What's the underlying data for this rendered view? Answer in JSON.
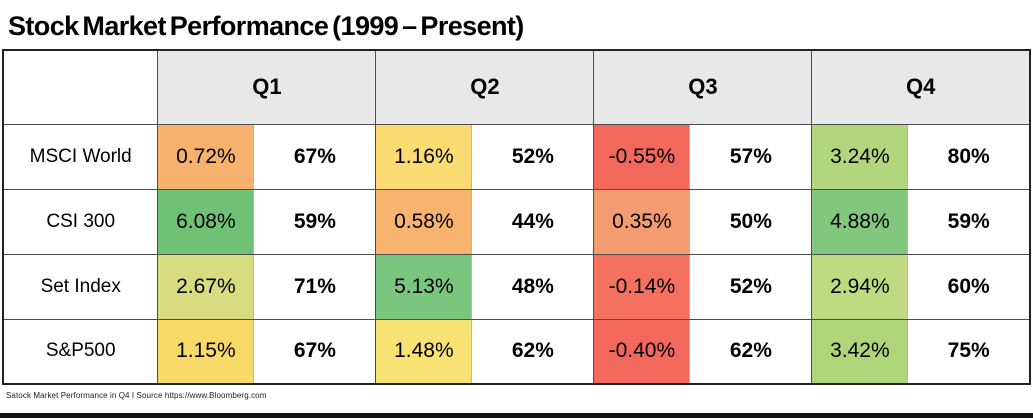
{
  "title": "Stock Market Performance (1999 – Present)",
  "footer": "Satock Market Performance in Q4 I Source https://www.Bloomberg.com",
  "table": {
    "corner_label": "",
    "quarters": [
      "Q1",
      "Q2",
      "Q3",
      "Q4"
    ],
    "rows": [
      {
        "label": "MSCI World",
        "cells": [
          {
            "value": "0.72%",
            "color": "#f6b26c",
            "pct": "67%"
          },
          {
            "value": "1.16%",
            "color": "#fbdc72",
            "pct": "52%"
          },
          {
            "value": "-0.55%",
            "color": "#f3685d",
            "pct": "57%"
          },
          {
            "value": "3.24%",
            "color": "#b2d67d",
            "pct": "80%"
          }
        ]
      },
      {
        "label": "CSI 300",
        "cells": [
          {
            "value": "6.08%",
            "color": "#6ec175",
            "pct": "59%"
          },
          {
            "value": "0.58%",
            "color": "#f8b36e",
            "pct": "44%"
          },
          {
            "value": "0.35%",
            "color": "#f49b70",
            "pct": "50%"
          },
          {
            "value": "4.88%",
            "color": "#83c67e",
            "pct": "59%"
          }
        ]
      },
      {
        "label": "Set Index",
        "cells": [
          {
            "value": "2.67%",
            "color": "#d7dc81",
            "pct": "71%"
          },
          {
            "value": "5.13%",
            "color": "#7bc67f",
            "pct": "48%"
          },
          {
            "value": "-0.14%",
            "color": "#f4705f",
            "pct": "52%"
          },
          {
            "value": "2.94%",
            "color": "#bfda80",
            "pct": "60%"
          }
        ]
      },
      {
        "label": "S&P500",
        "cells": [
          {
            "value": "1.15%",
            "color": "#f9da69",
            "pct": "67%"
          },
          {
            "value": "1.48%",
            "color": "#f8e273",
            "pct": "62%"
          },
          {
            "value": "-0.40%",
            "color": "#f3685d",
            "pct": "62%"
          },
          {
            "value": "3.42%",
            "color": "#afd57b",
            "pct": "75%"
          }
        ]
      }
    ]
  },
  "chart_data": {
    "type": "table",
    "title": "Stock Market Performance (1999 – Present)",
    "column_groups": [
      "Q1",
      "Q2",
      "Q3",
      "Q4"
    ],
    "subcolumns_per_group": [
      "average_return",
      "win_rate"
    ],
    "rows": [
      {
        "label": "MSCI World",
        "Q1": {
          "return": "0.72%",
          "win_rate": "67%"
        },
        "Q2": {
          "return": "1.16%",
          "win_rate": "52%"
        },
        "Q3": {
          "return": "-0.55%",
          "win_rate": "57%"
        },
        "Q4": {
          "return": "3.24%",
          "win_rate": "80%"
        }
      },
      {
        "label": "CSI 300",
        "Q1": {
          "return": "6.08%",
          "win_rate": "59%"
        },
        "Q2": {
          "return": "0.58%",
          "win_rate": "44%"
        },
        "Q3": {
          "return": "0.35%",
          "win_rate": "50%"
        },
        "Q4": {
          "return": "4.88%",
          "win_rate": "59%"
        }
      },
      {
        "label": "Set Index",
        "Q1": {
          "return": "2.67%",
          "win_rate": "71%"
        },
        "Q2": {
          "return": "5.13%",
          "win_rate": "48%"
        },
        "Q3": {
          "return": "-0.14%",
          "win_rate": "52%"
        },
        "Q4": {
          "return": "2.94%",
          "win_rate": "60%"
        }
      },
      {
        "label": "S&P500",
        "Q1": {
          "return": "1.15%",
          "win_rate": "67%"
        },
        "Q2": {
          "return": "1.48%",
          "win_rate": "62%"
        },
        "Q3": {
          "return": "-0.40%",
          "win_rate": "62%"
        },
        "Q4": {
          "return": "3.42%",
          "win_rate": "75%"
        }
      }
    ],
    "color_coding": "cell background encodes return: red #f3685d negative, orange #f6b26c low, yellow #fbdc72 mid, light-green #b2d67d good, green #6ec175 high",
    "source_caption": "Satock Market Performance in Q4 I Source https://www.Bloomberg.com"
  }
}
